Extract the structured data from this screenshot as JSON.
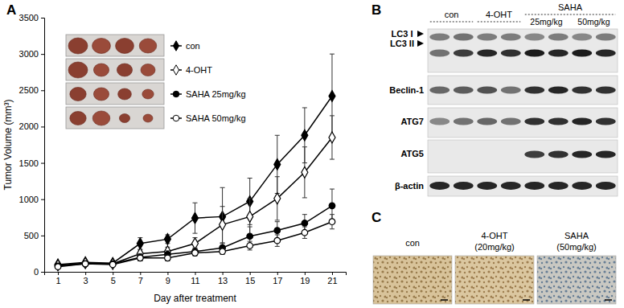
{
  "chart_data": {
    "type": "line",
    "y_label": "Tumor Volume (mm³)",
    "x_label": "Day after treatment",
    "x": [
      1,
      3,
      5,
      7,
      9,
      11,
      13,
      15,
      17,
      19,
      21
    ],
    "xlim": [
      0,
      22
    ],
    "xticks": [
      1,
      3,
      5,
      7,
      9,
      11,
      13,
      15,
      17,
      19,
      21
    ],
    "ylim": [
      0,
      3500
    ],
    "yticks": [
      0,
      500,
      1000,
      1500,
      2000,
      2500,
      3000,
      3500
    ],
    "legend": "upper left",
    "series": [
      {
        "name": "con",
        "color": "#000000",
        "marker": "diamond",
        "values": [
          100,
          130,
          120,
          390,
          450,
          740,
          760,
          970,
          1480,
          1880,
          2420
        ],
        "errors": [
          20,
          20,
          20,
          80,
          60,
          210,
          400,
          320,
          400,
          380,
          580
        ]
      },
      {
        "name": "4-OHT",
        "color": "#000000",
        "marker": "open-diamond",
        "values": [
          90,
          120,
          110,
          250,
          280,
          390,
          650,
          760,
          1010,
          1370,
          1850
        ],
        "errors": [
          20,
          20,
          20,
          50,
          60,
          80,
          250,
          250,
          300,
          350,
          300
        ]
      },
      {
        "name": "SAHA 25mg/kg",
        "color": "#000000",
        "marker": "circle",
        "values": [
          80,
          110,
          110,
          200,
          240,
          280,
          330,
          490,
          570,
          670,
          910
        ],
        "errors": [
          10,
          15,
          15,
          50,
          50,
          50,
          60,
          130,
          120,
          120,
          230
        ]
      },
      {
        "name": "SAHA 50mg/kg",
        "color": "#000000",
        "marker": "open-circle",
        "values": [
          70,
          110,
          100,
          190,
          190,
          260,
          280,
          360,
          430,
          540,
          690
        ],
        "errors": [
          10,
          10,
          10,
          40,
          40,
          40,
          40,
          60,
          80,
          80,
          100
        ]
      }
    ]
  },
  "panel_labels": [
    "A",
    "B",
    "C"
  ],
  "blot": {
    "columns": [
      "con",
      "4-OHT"
    ],
    "group": "SAHA",
    "group_columns": [
      "25mg/kg",
      "50mg/kg"
    ],
    "rows": [
      "LC3 I",
      "LC3 II",
      "Beclin-1",
      "ATG7",
      "ATG5",
      "β-actin"
    ]
  },
  "ihc": {
    "panels": [
      {
        "label": "con"
      },
      {
        "label": "4-OHT",
        "dose": "(20mg/kg)"
      },
      {
        "label": "SAHA",
        "dose": "(50mg/kg)"
      }
    ]
  }
}
